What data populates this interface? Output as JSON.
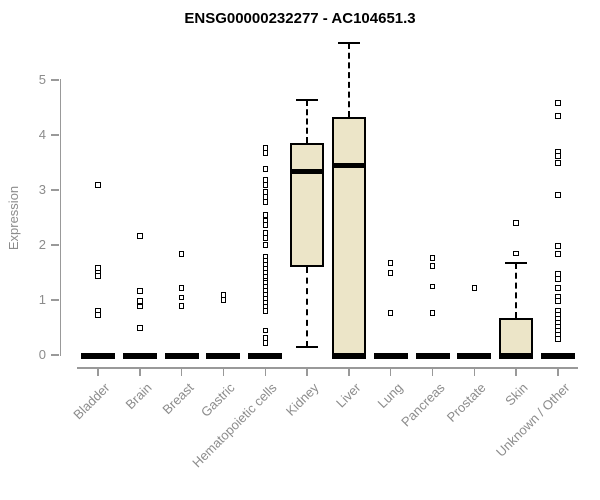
{
  "chart_data": {
    "type": "boxplot",
    "title": "ENSG00000232277 - AC104651.3",
    "ylabel": "Expression",
    "ylim": [
      0,
      5.75
    ],
    "yticks": [
      0,
      1,
      2,
      3,
      4,
      5
    ],
    "grid": false,
    "legend": false,
    "box_fill_color": "#ece5c8",
    "box_line_color": "#000000",
    "axis_color": "#999999",
    "tick_label_color": "#8c8c8c",
    "categories": [
      "Bladder",
      "Brain",
      "Breast",
      "Gastric",
      "Hematopoietic cells",
      "Kidney",
      "Liver",
      "Lung",
      "Pancreas",
      "Prostate",
      "Skin",
      "Unknown / Other"
    ],
    "series": [
      {
        "label": "Bladder",
        "q1": 0,
        "median": 0,
        "q3": 0,
        "whisker_low": 0,
        "whisker_high": 0,
        "outliers": [
          3.09,
          1.58,
          1.5,
          1.44,
          0.8,
          0.73
        ]
      },
      {
        "label": "Brain",
        "q1": 0,
        "median": 0,
        "q3": 0,
        "whisker_low": 0,
        "whisker_high": 0,
        "outliers": [
          2.16,
          1.16,
          0.98,
          0.88,
          0.49
        ]
      },
      {
        "label": "Breast",
        "q1": 0,
        "median": 0,
        "q3": 0,
        "whisker_low": 0,
        "whisker_high": 0,
        "outliers": [
          1.84,
          1.22,
          1.05,
          0.89
        ]
      },
      {
        "label": "Gastric",
        "q1": 0,
        "median": 0,
        "q3": 0,
        "whisker_low": 0,
        "whisker_high": 0,
        "outliers": [
          1.09,
          1.0
        ]
      },
      {
        "label": "Hematopoietic cells",
        "q1": 0,
        "median": 0,
        "q3": 0,
        "whisker_low": 0,
        "whisker_high": 0,
        "outliers": [
          3.76,
          3.67,
          3.38,
          3.18,
          3.09,
          2.96,
          2.87,
          2.78,
          2.55,
          2.45,
          2.36,
          2.22,
          2.13,
          2.0,
          1.78,
          1.71,
          1.64,
          1.56,
          1.49,
          1.42,
          1.35,
          1.31,
          1.24,
          1.16,
          1.09,
          1.02,
          0.95,
          0.87,
          0.8,
          0.45,
          0.31,
          0.22
        ]
      },
      {
        "label": "Kidney",
        "q1": 1.6,
        "median": 3.33,
        "q3": 3.85,
        "whisker_low": 0.15,
        "whisker_high": 4.64,
        "outliers": []
      },
      {
        "label": "Liver",
        "q1": 0,
        "median": 3.45,
        "q3": 4.33,
        "whisker_low": 0,
        "whisker_high": 5.67,
        "outliers": []
      },
      {
        "label": "Lung",
        "q1": 0,
        "median": 0,
        "q3": 0,
        "whisker_low": 0,
        "whisker_high": 0,
        "outliers": [
          1.67,
          1.49,
          0.76
        ]
      },
      {
        "label": "Pancreas",
        "q1": 0,
        "median": 0,
        "q3": 0,
        "whisker_low": 0,
        "whisker_high": 0,
        "outliers": [
          1.76,
          1.62,
          1.25,
          0.76
        ]
      },
      {
        "label": "Prostate",
        "q1": 0,
        "median": 0,
        "q3": 0,
        "whisker_low": 0,
        "whisker_high": 0,
        "outliers": [
          1.22
        ]
      },
      {
        "label": "Skin",
        "q1": 0,
        "median": 0,
        "q3": 0.67,
        "whisker_low": 0,
        "whisker_high": 1.67,
        "outliers": [
          2.4,
          1.85
        ]
      },
      {
        "label": "Unknown / Other",
        "q1": 0,
        "median": 0,
        "q3": 0,
        "whisker_low": 0,
        "whisker_high": 0,
        "outliers": [
          4.58,
          4.35,
          3.7,
          3.62,
          3.49,
          2.91,
          1.98,
          1.84,
          1.47,
          1.38,
          1.22,
          1.06,
          0.98,
          0.8,
          0.73,
          0.66,
          0.58,
          0.51,
          0.44,
          0.36,
          0.29
        ]
      }
    ]
  }
}
